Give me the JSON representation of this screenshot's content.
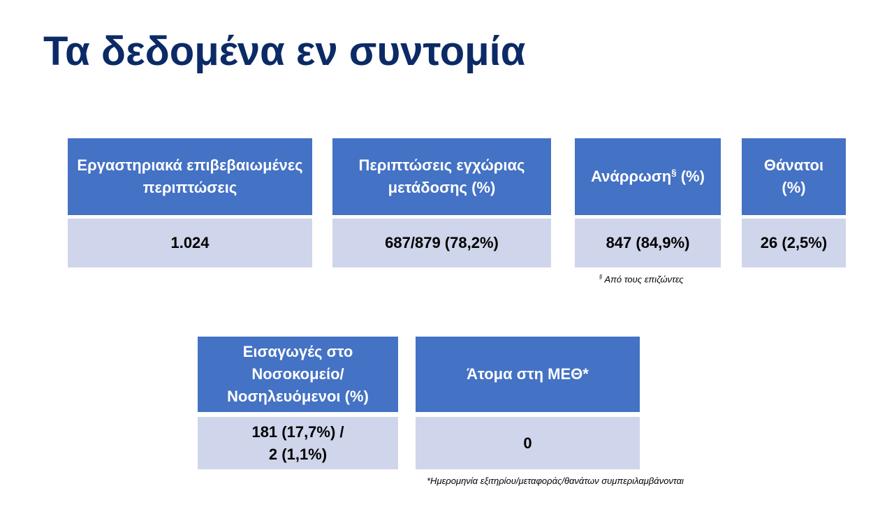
{
  "title": "Τα δεδομένα εν συντομία",
  "cards": [
    {
      "header": "Εργαστηριακά επιβεβαιωμένες περιπτώσεις",
      "value": "1.024"
    },
    {
      "header": "Περιπτώσεις εγχώριας μετάδοσης (%)",
      "value": "687/879 (78,2%)"
    },
    {
      "header": "Ανάρρωση",
      "header_sup": "§",
      "header_after": "(%)",
      "value": "847 (84,9%)"
    },
    {
      "header": "Θάνατοι (%)",
      "value": "26 (2,5%)"
    },
    {
      "header": "Εισαγωγές στο Νοσοκομείο/ Νοσηλευόμενοι (%)",
      "value_lines": [
        "181 (17,7%) /",
        "2 (1,1%)"
      ]
    },
    {
      "header": "Άτομα στη ΜΕΘ*",
      "value": "0"
    }
  ],
  "footnotes": [
    {
      "mark": "§",
      "text": "Από τους επιζώντες"
    },
    {
      "text": "*Ημερομηνία εξιτηρίου/μεταφοράς/θανάτων συμπεριλαμβάνονται"
    }
  ]
}
